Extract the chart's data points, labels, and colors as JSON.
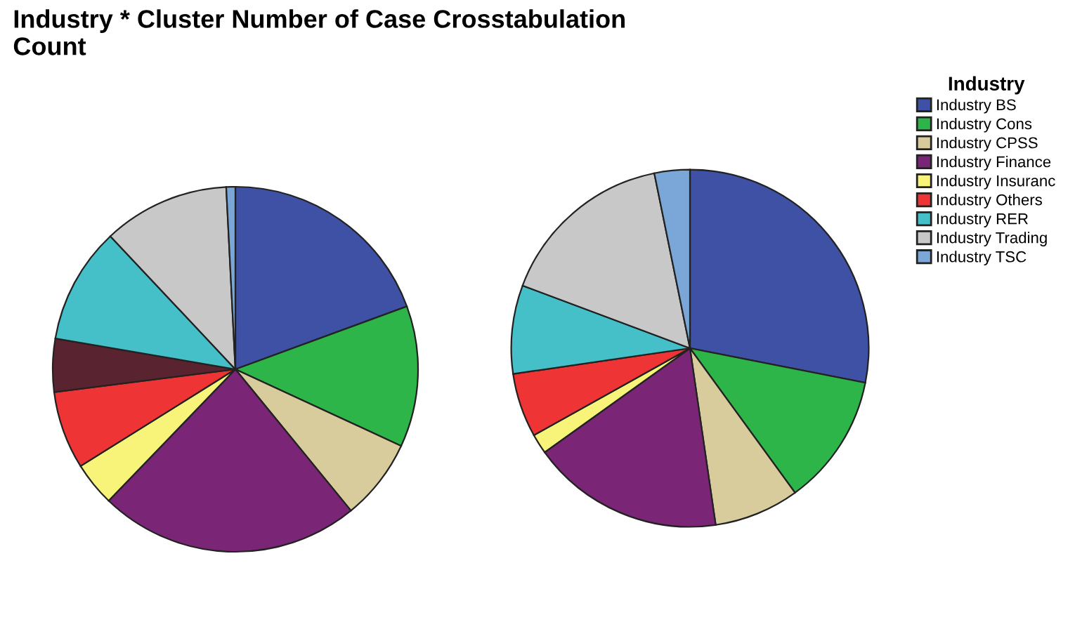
{
  "chart_data": [
    {
      "type": "pie",
      "title": "Industry * Cluster Number of Case Crosstabulation\nCount",
      "legend": "right",
      "legend_title": "Industry",
      "categories": [
        "Industry BS",
        "Industry Cons",
        "Industry CPSS",
        "Industry Finance",
        "Industry Insuranc",
        "Industry Others",
        null,
        "Industry RER",
        "Industry Trading",
        "Industry TSC"
      ],
      "values": [
        19.4,
        12.5,
        7.2,
        23.1,
        3.9,
        6.9,
        4.7,
        10.3,
        11.2,
        0.8
      ],
      "colors": [
        "#3f51a5",
        "#2db54a",
        "#d8cc9c",
        "#7b2576",
        "#f8f47a",
        "#ee3434",
        "#5a2330",
        "#45c0c8",
        "#c8c8c8",
        "#7ba7d8"
      ]
    },
    {
      "type": "pie",
      "categories": [
        null,
        null,
        null,
        null,
        null,
        null,
        null,
        null,
        null
      ],
      "values": [
        28.1,
        11.9,
        7.7,
        17.4,
        1.8,
        5.8,
        8.0,
        16.1,
        3.2
      ],
      "colors": [
        "#3f51a5",
        "#2db54a",
        "#d8cc9c",
        "#7b2576",
        "#f8f47a",
        "#ee3434",
        "#45c0c8",
        "#c8c8c8",
        "#7ba7d8"
      ]
    }
  ]
}
